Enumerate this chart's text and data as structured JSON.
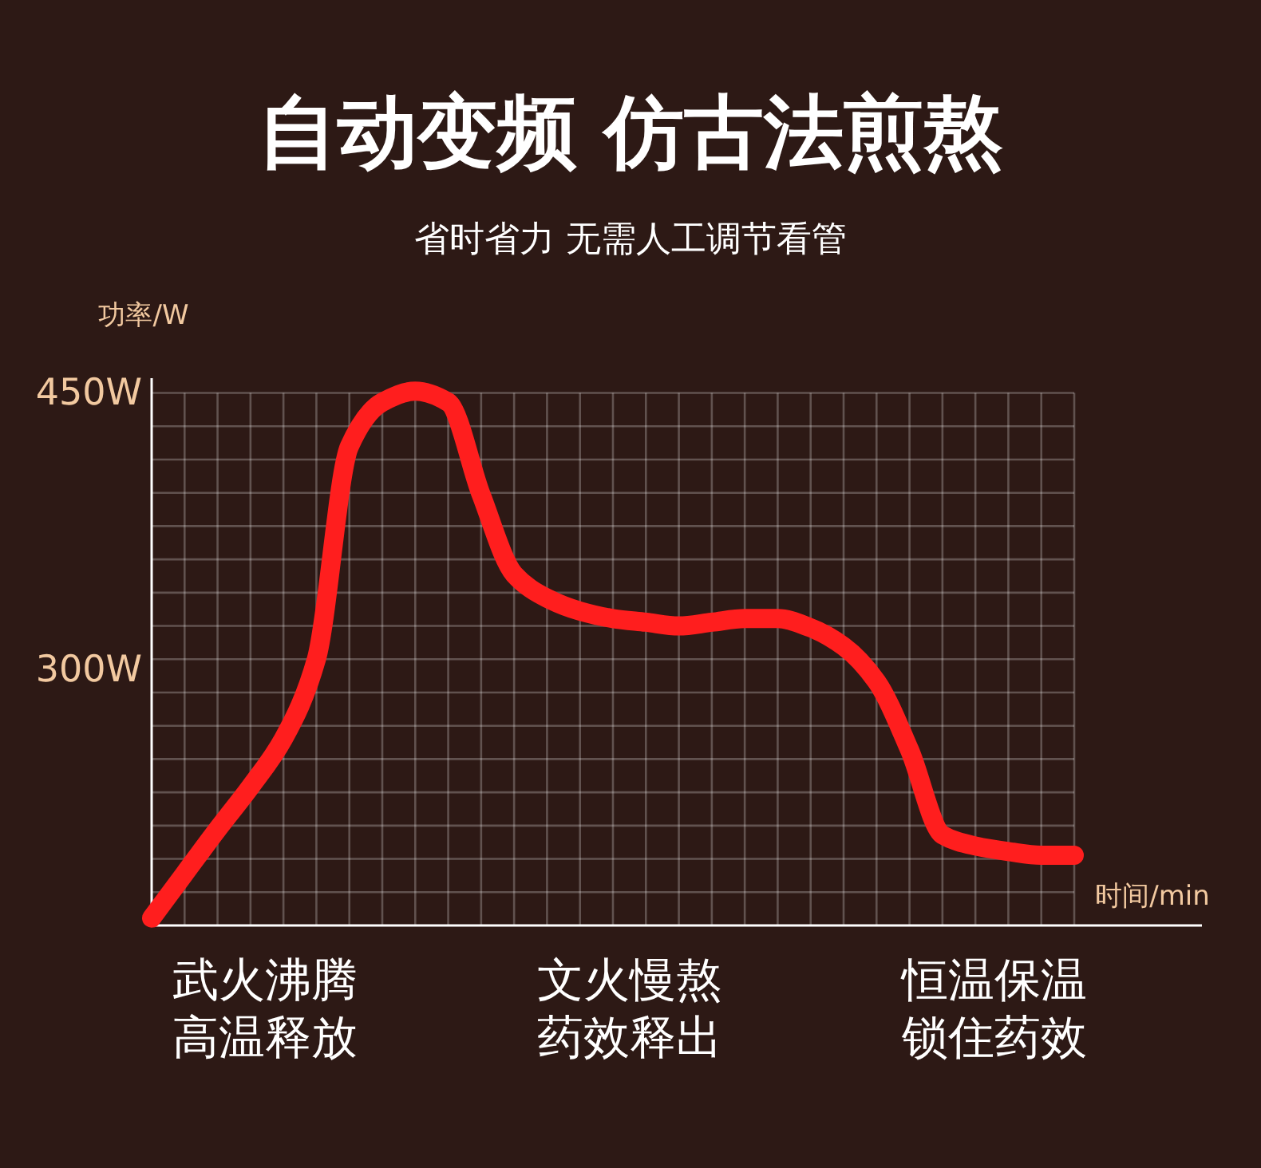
{
  "chart_data": {
    "type": "line",
    "title": "自动变频 仿古法煎熬",
    "subtitle": "省时省力 无需人工调节看管",
    "ylabel": "功率/W",
    "xlabel": "时间/min",
    "annotations": [
      "武火沸腾",
      "高温释放",
      "文火慢熬",
      "药效释出",
      "恒温保温",
      "锁住药效"
    ],
    "categories": [
      null,
      null,
      null,
      null,
      null,
      null,
      null,
      null,
      null,
      null,
      null,
      null,
      null,
      null,
      null,
      null,
      null,
      null,
      null,
      null,
      null,
      null,
      null,
      null,
      null,
      null,
      null,
      null,
      null
    ],
    "series": [
      {
        "color": "#ff1e1e",
        "values": [
          166,
          190,
          214,
          237,
          263,
          306,
          421,
          445,
          451,
          445,
          395,
          352,
          339,
          332,
          328,
          326,
          324,
          326,
          328,
          328,
          323,
          313,
          294,
          257,
          211,
          205,
          202,
          200,
          200
        ]
      }
    ],
    "ylim": [
      162,
      458
    ],
    "yticks": [
      {
        "value": 450,
        "label": "450W"
      },
      {
        "value": 300,
        "label": "300W"
      }
    ],
    "grid": true,
    "line_style": "solid"
  }
}
